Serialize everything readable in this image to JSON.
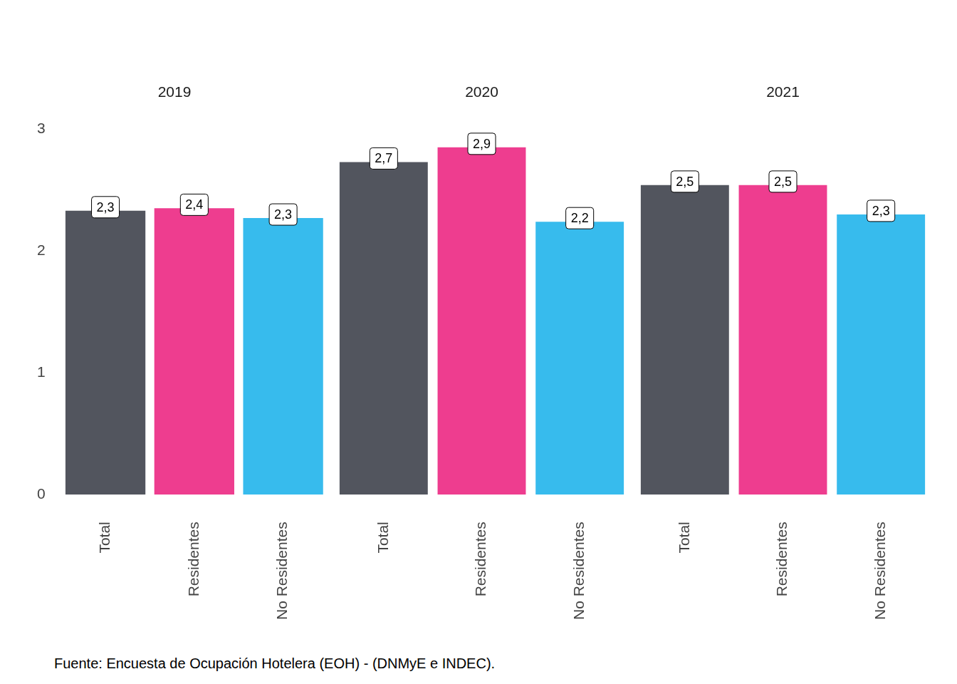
{
  "chart_data": [
    {
      "type": "bar",
      "title": "2019",
      "categories": [
        "Total",
        "Residentes",
        "No Residentes"
      ],
      "values": [
        2.33,
        2.35,
        2.27
      ],
      "value_labels": [
        "2,3",
        "2,4",
        "2,3"
      ],
      "colors": [
        "#52555e",
        "#ee3d8f",
        "#37bbed"
      ],
      "ylim": [
        0,
        3
      ],
      "yticks": [
        0,
        1,
        2,
        3
      ],
      "grid": false,
      "data_labels": true
    },
    {
      "type": "bar",
      "title": "2020",
      "categories": [
        "Total",
        "Residentes",
        "No Residentes"
      ],
      "values": [
        2.73,
        2.85,
        2.24
      ],
      "value_labels": [
        "2,7",
        "2,9",
        "2,2"
      ],
      "colors": [
        "#52555e",
        "#ee3d8f",
        "#37bbed"
      ],
      "ylim": [
        0,
        3
      ],
      "yticks": [
        0,
        1,
        2,
        3
      ],
      "grid": false,
      "data_labels": true,
      "tick_labels": "x"
    },
    {
      "type": "bar",
      "title": "2021",
      "categories": [
        "Total",
        "Residentes",
        "No Residentes"
      ],
      "values": [
        2.54,
        2.54,
        2.3
      ],
      "value_labels": [
        "2,5",
        "2,5",
        "2,3"
      ],
      "colors": [
        "#52555e",
        "#ee3d8f",
        "#37bbed"
      ],
      "ylim": [
        0,
        3
      ],
      "yticks": [
        0,
        1,
        2,
        3
      ],
      "grid": false,
      "data_labels": true,
      "tick_labels": "x"
    }
  ],
  "caption": "Fuente: Encuesta de Ocupación Hotelera (EOH) - (DNMyE e INDEC)."
}
